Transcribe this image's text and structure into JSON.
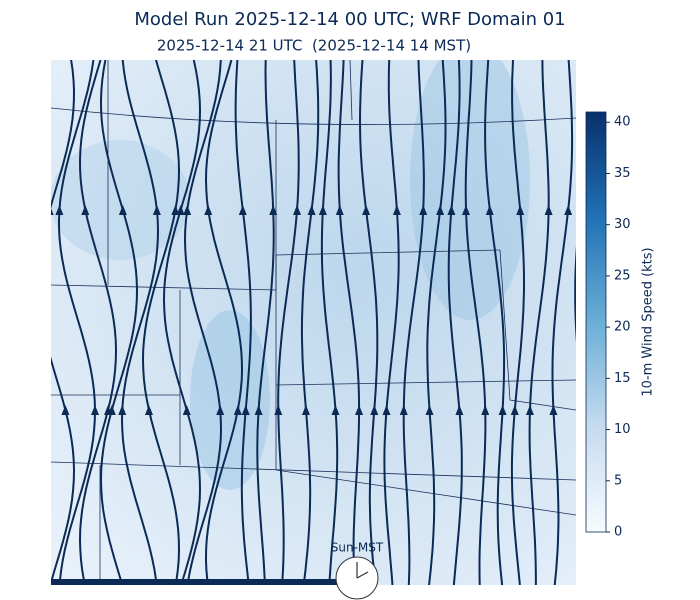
{
  "title": "Model Run 2025-12-14 00 UTC; WRF Domain 01",
  "subtitle": "2025-12-14 21 UTC  (2025-12-14 14 MST)",
  "colorbar": {
    "label": "10-m Wind Speed (kts)",
    "lim": [
      0,
      41
    ],
    "ticks": [
      0,
      5,
      10,
      15,
      20,
      25,
      30,
      35,
      40
    ]
  },
  "clock": {
    "label": "Sun-MST"
  }
}
